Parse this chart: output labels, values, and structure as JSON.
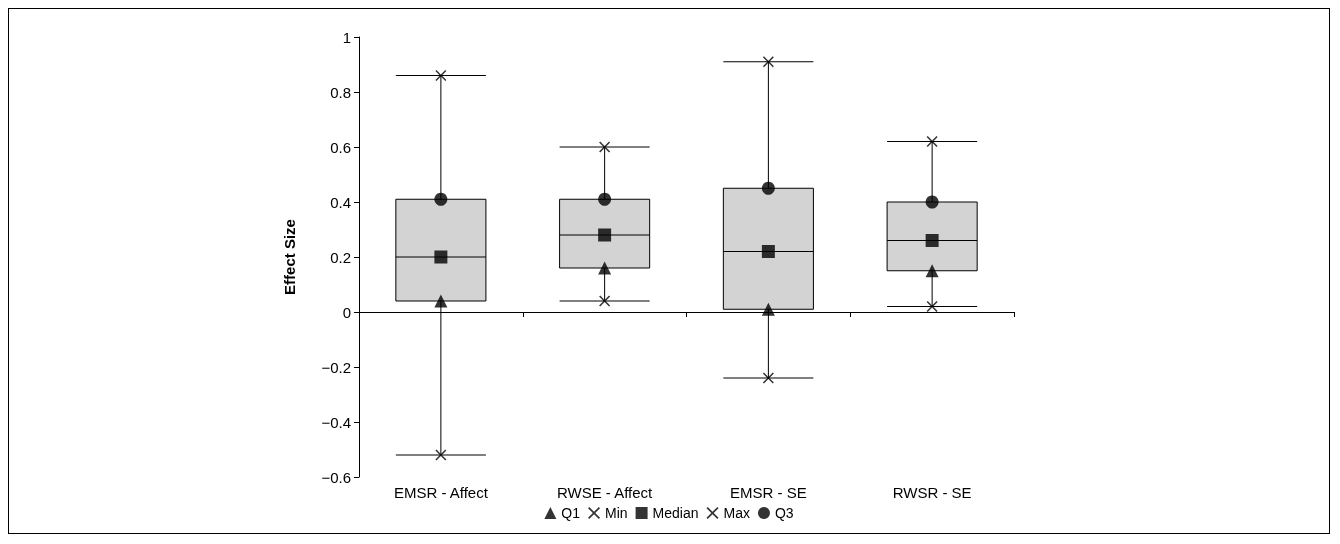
{
  "chart_data": {
    "type": "box",
    "ylabel": "Effect Size",
    "categories": [
      "EMSR - Affect",
      "RWSE - Affect",
      "EMSR - SE",
      "RWSR - SE"
    ],
    "ylim": [
      -0.6,
      1
    ],
    "yticks": [
      {
        "value": -0.6,
        "label": "−0.6"
      },
      {
        "value": -0.4,
        "label": "−0.4"
      },
      {
        "value": -0.2,
        "label": "−0.2"
      },
      0,
      0.2,
      0.4,
      0.6,
      0.8,
      1
    ],
    "legend": "bottom",
    "series": [
      {
        "color": "#d3d3d3",
        "boxes": [
          {
            "low": -0.52,
            "q1": 0.04,
            "median": 0.2,
            "q3": 0.41,
            "high": 0.86
          },
          {
            "low": 0.04,
            "q1": 0.16,
            "median": 0.28,
            "q3": 0.41,
            "high": 0.6
          },
          {
            "low": -0.24,
            "q1": 0.01,
            "median": 0.22,
            "q3": 0.45,
            "high": 0.91
          },
          {
            "low": 0.02,
            "q1": 0.15,
            "median": 0.26,
            "q3": 0.4,
            "high": 0.62
          }
        ]
      },
      {
        "type": "scatter",
        "name": "Q1",
        "color": "#000000",
        "marker": "triangle",
        "x": [
          "EMSR - Affect",
          "RWSE - Affect",
          "EMSR - SE",
          "RWSR - SE"
        ],
        "values": [
          0.04,
          0.16,
          0.01,
          0.15
        ]
      },
      {
        "type": "scatter",
        "name": "Min",
        "color": "#000000",
        "marker": "cross",
        "x": [
          "EMSR - Affect",
          "RWSE - Affect",
          "EMSR - SE",
          "RWSR - SE"
        ],
        "values": [
          -0.52,
          0.04,
          -0.24,
          0.02
        ]
      },
      {
        "type": "scatter",
        "name": "Median",
        "color": "#000000",
        "marker": "square",
        "x": [
          "EMSR - Affect",
          "RWSE - Affect",
          "EMSR - SE",
          "RWSR - SE"
        ],
        "values": [
          0.2,
          0.28,
          0.22,
          0.26
        ]
      },
      {
        "type": "scatter",
        "name": "Max",
        "color": "#000000",
        "marker": "cross",
        "x": [
          "EMSR - Affect",
          "RWSE - Affect",
          "EMSR - SE",
          "RWSR - SE"
        ],
        "values": [
          0.86,
          0.6,
          0.91,
          0.62
        ]
      },
      {
        "type": "scatter",
        "name": "Q3",
        "color": "#000000",
        "marker": "circle",
        "x": [
          "EMSR - Affect",
          "RWSE - Affect",
          "EMSR - SE",
          "RWSR - SE"
        ],
        "values": [
          0.41,
          0.41,
          0.45,
          0.4
        ]
      }
    ]
  }
}
